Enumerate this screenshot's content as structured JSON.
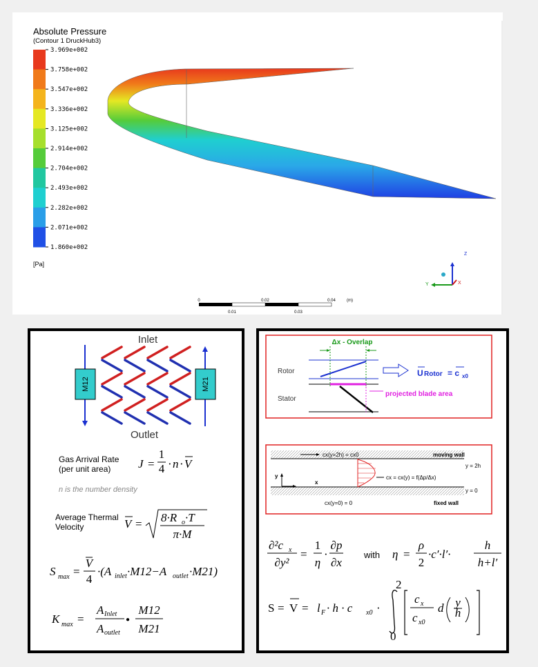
{
  "contour": {
    "title": "Absolute Pressure",
    "subtitle": "(Contour 1 DruckHub3)",
    "legend": [
      "3.969e+002",
      "3.758e+002",
      "3.547e+002",
      "3.336e+002",
      "3.125e+002",
      "2.914e+002",
      "2.704e+002",
      "2.493e+002",
      "2.282e+002",
      "2.071e+002",
      "1.860e+002"
    ],
    "unit": "[Pa]",
    "scale_top": [
      "0",
      "0.02",
      "0.04",
      "(m)"
    ],
    "scale_bottom": [
      "0.01",
      "0.03"
    ],
    "axes": [
      "Z",
      "Y",
      "X"
    ]
  },
  "left_panel": {
    "inlet": "Inlet",
    "outlet": "Outlet",
    "m12": "M12",
    "m21": "M21",
    "gas_label": [
      "Gas Arrival Rate",
      "(per unit area)"
    ],
    "eq_j": [
      "J",
      "=",
      "1",
      "4",
      "·",
      "n",
      "·",
      "V"
    ],
    "note": "n is the number density",
    "thermal_label": [
      "Average Thermal",
      "Velocity"
    ],
    "eq_v": [
      "V",
      "=",
      "8·R",
      "o",
      "·T",
      "π·M"
    ],
    "eq_s": [
      "S",
      "max",
      "=",
      "V",
      "4",
      "·(A",
      "inlet",
      "·M12−A",
      "outlet",
      "·M21)"
    ],
    "eq_k": [
      "K",
      "max",
      "=",
      "A",
      "Inlet",
      "A",
      "outlet",
      "●",
      "M12",
      "M21"
    ]
  },
  "right_panel": {
    "overlap": "Δx - Overlap",
    "rotor": "Rotor",
    "stator": "Stator",
    "u_rotor": [
      "U",
      "Rotor",
      "= c",
      "x0"
    ],
    "projected": "projected blade area",
    "flow": {
      "top": "cx(y=2h) = cx0",
      "moving": "moving wall",
      "y2h": "y = 2h",
      "y": "y",
      "x": "x",
      "profile": "cx = cx(y) = f(Δp/Δx)",
      "y0": "y = 0",
      "bottom": "cx(y=0) = 0",
      "fixed": "fixed wall"
    },
    "eq1": [
      "∂²c",
      "x",
      "∂y²",
      "=",
      "1",
      "η",
      "·",
      "∂p",
      "∂x"
    ],
    "with": "with",
    "eq_eta": [
      "η",
      "=",
      "ρ",
      "2",
      "·c′·l′·",
      "h",
      "h+l′"
    ],
    "eq_s": [
      "S",
      "=",
      "V",
      "=",
      "l",
      "F",
      "· h · c",
      "x0",
      "·",
      "2",
      "0",
      "c",
      "x",
      "c",
      "x0",
      "d",
      "y",
      "h"
    ]
  }
}
